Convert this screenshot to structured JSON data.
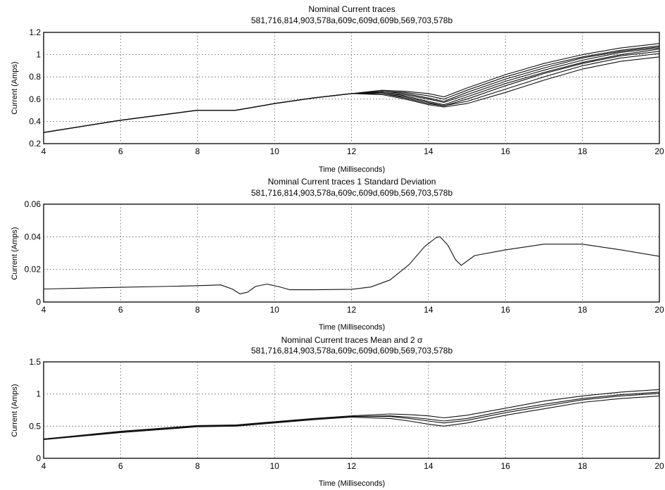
{
  "chart_data": [
    {
      "type": "line",
      "title": "Nominal Current traces",
      "subtitle": "581,716,814,903,578a,609c,609d,609b,569,703,578b",
      "xlabel": "Time (Milliseconds)",
      "ylabel": "Current (Amps)",
      "xlim": [
        4,
        20
      ],
      "ylim": [
        0.2,
        1.2
      ],
      "xticks": [
        "4",
        "6",
        "8",
        "10",
        "12",
        "14",
        "16",
        "18",
        "20"
      ],
      "yticks": [
        "0.2",
        "0.4",
        "0.6",
        "0.8",
        "1",
        "1.2"
      ],
      "grid": true,
      "series": [
        {
          "x": [
            4,
            6,
            8,
            9,
            10,
            11,
            12,
            12.8,
            13.4,
            14.0,
            14.4,
            15,
            16,
            17,
            18,
            19,
            20
          ],
          "values": [
            0.3,
            0.41,
            0.5,
            0.5,
            0.56,
            0.61,
            0.65,
            0.68,
            0.67,
            0.65,
            0.62,
            0.7,
            0.82,
            0.92,
            1.0,
            1.06,
            1.1
          ]
        },
        {
          "x": [
            4,
            6,
            8,
            9,
            10,
            11,
            12,
            12.8,
            13.4,
            14.0,
            14.4,
            15,
            16,
            17,
            18,
            19,
            20
          ],
          "values": [
            0.3,
            0.41,
            0.5,
            0.5,
            0.56,
            0.61,
            0.65,
            0.67,
            0.66,
            0.63,
            0.6,
            0.68,
            0.8,
            0.9,
            0.98,
            1.04,
            1.08
          ]
        },
        {
          "x": [
            4,
            6,
            8,
            9,
            10,
            11,
            12,
            12.8,
            13.4,
            14.0,
            14.4,
            15,
            16,
            17,
            18,
            19,
            20
          ],
          "values": [
            0.3,
            0.41,
            0.5,
            0.5,
            0.56,
            0.61,
            0.65,
            0.67,
            0.65,
            0.61,
            0.58,
            0.66,
            0.78,
            0.88,
            0.97,
            1.03,
            1.07
          ]
        },
        {
          "x": [
            4,
            6,
            8,
            9,
            10,
            11,
            12,
            12.8,
            13.4,
            14.0,
            14.4,
            15,
            16,
            17,
            18,
            19,
            20
          ],
          "values": [
            0.3,
            0.41,
            0.5,
            0.5,
            0.56,
            0.61,
            0.65,
            0.66,
            0.64,
            0.6,
            0.57,
            0.64,
            0.76,
            0.86,
            0.95,
            1.02,
            1.06
          ]
        },
        {
          "x": [
            4,
            6,
            8,
            9,
            10,
            11,
            12,
            12.8,
            13.4,
            14.0,
            14.4,
            15,
            16,
            17,
            18,
            19,
            20
          ],
          "values": [
            0.3,
            0.41,
            0.5,
            0.5,
            0.56,
            0.61,
            0.65,
            0.66,
            0.63,
            0.58,
            0.55,
            0.62,
            0.74,
            0.84,
            0.93,
            1.0,
            1.05
          ]
        },
        {
          "x": [
            4,
            6,
            8,
            9,
            10,
            11,
            12,
            12.8,
            13.4,
            14.0,
            14.4,
            15,
            16,
            17,
            18,
            19,
            20
          ],
          "values": [
            0.3,
            0.41,
            0.5,
            0.5,
            0.56,
            0.61,
            0.65,
            0.65,
            0.62,
            0.57,
            0.54,
            0.6,
            0.72,
            0.83,
            0.92,
            0.99,
            1.03
          ]
        },
        {
          "x": [
            4,
            6,
            8,
            9,
            10,
            11,
            12,
            12.8,
            13.4,
            14.0,
            14.4,
            15,
            16,
            17,
            18,
            19,
            20
          ],
          "values": [
            0.3,
            0.41,
            0.5,
            0.5,
            0.56,
            0.61,
            0.65,
            0.65,
            0.61,
            0.56,
            0.54,
            0.58,
            0.69,
            0.8,
            0.9,
            0.97,
            1.01
          ]
        },
        {
          "x": [
            4,
            6,
            8,
            9,
            10,
            11,
            12,
            12.8,
            13.4,
            14.0,
            14.4,
            15,
            16,
            17,
            18,
            19,
            20
          ],
          "values": [
            0.3,
            0.41,
            0.5,
            0.5,
            0.56,
            0.61,
            0.65,
            0.64,
            0.6,
            0.55,
            0.53,
            0.56,
            0.66,
            0.77,
            0.87,
            0.94,
            0.98
          ]
        }
      ]
    },
    {
      "type": "line",
      "title": "Nominal Current traces 1 Standard Deviation",
      "subtitle": "581,716,814,903,578a,609c,609d,609b,569,703,578b",
      "xlabel": "Time (Milliseconds)",
      "ylabel": "Current (Amps)",
      "xlim": [
        4,
        20
      ],
      "ylim": [
        0,
        0.06
      ],
      "xticks": [
        "4",
        "6",
        "8",
        "10",
        "12",
        "14",
        "16",
        "18",
        "20"
      ],
      "yticks": [
        "0",
        "0.02",
        "0.04",
        "0.06"
      ],
      "grid": true,
      "series": [
        {
          "x": [
            4,
            5,
            6,
            7,
            8,
            8.6,
            8.9,
            9.1,
            9.3,
            9.5,
            9.8,
            10.1,
            10.4,
            11,
            12,
            12.5,
            13,
            13.5,
            13.9,
            14.2,
            14.3,
            14.5,
            14.7,
            14.85,
            15.2,
            16,
            17,
            18,
            19,
            20
          ],
          "values": [
            0.008,
            0.0085,
            0.009,
            0.0095,
            0.01,
            0.0105,
            0.008,
            0.005,
            0.006,
            0.0095,
            0.011,
            0.0095,
            0.0075,
            0.0075,
            0.0078,
            0.0092,
            0.0135,
            0.023,
            0.034,
            0.0395,
            0.04,
            0.035,
            0.026,
            0.0225,
            0.0285,
            0.032,
            0.0355,
            0.0355,
            0.032,
            0.028
          ]
        }
      ]
    },
    {
      "type": "line",
      "title": "Nominal Current traces Mean and 2 σ",
      "subtitle": "581,716,814,903,578a,609c,609d,609b,569,703,578b",
      "xlabel": "Time (Milliseconds)",
      "ylabel": "Current (Amps)",
      "xlim": [
        4,
        20
      ],
      "ylim": [
        0,
        1.5
      ],
      "xticks": [
        "4",
        "6",
        "8",
        "10",
        "12",
        "14",
        "16",
        "18",
        "20"
      ],
      "yticks": [
        "0",
        "0.5",
        "1",
        "1.5"
      ],
      "grid": true,
      "series": [
        {
          "x": [
            4,
            6,
            8,
            9,
            10,
            11,
            12,
            13,
            13.5,
            14,
            14.4,
            15,
            16,
            17,
            18,
            19,
            20
          ],
          "values": [
            0.3,
            0.42,
            0.51,
            0.52,
            0.57,
            0.62,
            0.66,
            0.69,
            0.68,
            0.66,
            0.63,
            0.67,
            0.78,
            0.89,
            0.97,
            1.03,
            1.07
          ]
        },
        {
          "x": [
            4,
            6,
            8,
            9,
            10,
            11,
            12,
            13,
            13.5,
            14,
            14.4,
            15,
            16,
            17,
            18,
            19,
            20
          ],
          "values": [
            0.3,
            0.41,
            0.5,
            0.51,
            0.56,
            0.61,
            0.65,
            0.66,
            0.64,
            0.61,
            0.58,
            0.62,
            0.74,
            0.84,
            0.93,
            0.99,
            1.03
          ]
        },
        {
          "x": [
            4,
            6,
            8,
            9,
            10,
            11,
            12,
            13,
            13.5,
            14,
            14.4,
            15,
            16,
            17,
            18,
            19,
            20
          ],
          "values": [
            0.3,
            0.41,
            0.5,
            0.51,
            0.56,
            0.61,
            0.65,
            0.65,
            0.62,
            0.58,
            0.55,
            0.59,
            0.71,
            0.81,
            0.91,
            0.97,
            1.01
          ]
        },
        {
          "x": [
            4,
            6,
            8,
            9,
            10,
            11,
            12,
            13,
            13.5,
            14,
            14.4,
            15,
            16,
            17,
            18,
            19,
            20
          ],
          "values": [
            0.29,
            0.4,
            0.49,
            0.5,
            0.55,
            0.6,
            0.64,
            0.62,
            0.58,
            0.53,
            0.5,
            0.55,
            0.67,
            0.77,
            0.87,
            0.93,
            0.97
          ]
        }
      ]
    }
  ]
}
